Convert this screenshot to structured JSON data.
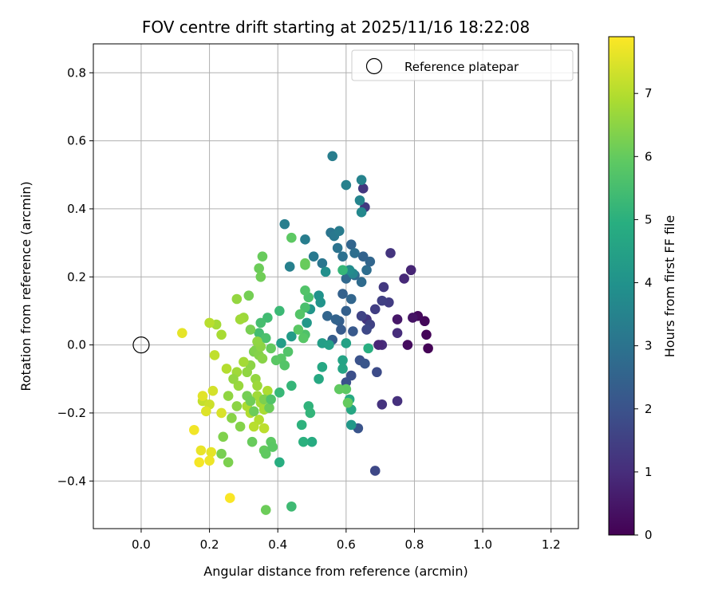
{
  "chart_data": {
    "type": "scatter",
    "title": "FOV centre drift starting at 2025/11/16 18:22:08",
    "xlabel": "Angular distance from reference (arcmin)",
    "ylabel": "Rotation from reference (arcmin)",
    "xlim": [
      -0.14,
      1.28
    ],
    "ylim": [
      -0.54,
      0.885
    ],
    "xticks": [
      0.0,
      0.2,
      0.4,
      0.6,
      0.8,
      1.0,
      1.2
    ],
    "xtick_labels": [
      "0.0",
      "0.2",
      "0.4",
      "0.6",
      "0.8",
      "1.0",
      "1.2"
    ],
    "yticks": [
      -0.4,
      -0.2,
      0.0,
      0.2,
      0.4,
      0.6,
      0.8
    ],
    "ytick_labels": [
      "−0.4",
      "−0.2",
      "0.0",
      "0.2",
      "0.4",
      "0.6",
      "0.8"
    ],
    "grid": true,
    "legend": {
      "placement": "top-right",
      "entries": [
        {
          "label": "Reference platepar",
          "marker": "open-circle"
        }
      ]
    },
    "reference_point": {
      "x": 0.0,
      "y": 0.0
    },
    "colorbar": {
      "label": "Hours from first FF file",
      "colormap": "viridis",
      "range": [
        0,
        7.9
      ],
      "ticks": [
        0,
        1,
        2,
        3,
        4,
        5,
        6,
        7
      ],
      "tick_labels": [
        "0",
        "1",
        "2",
        "3",
        "4",
        "5",
        "6",
        "7"
      ]
    },
    "points": [
      [
        0.84,
        -0.01,
        0.05
      ],
      [
        0.835,
        0.03,
        0.1
      ],
      [
        0.83,
        0.07,
        0.15
      ],
      [
        0.81,
        0.085,
        0.2
      ],
      [
        0.78,
        0.0,
        0.25
      ],
      [
        0.795,
        0.08,
        0.4
      ],
      [
        0.75,
        0.075,
        0.5
      ],
      [
        0.79,
        0.22,
        0.8
      ],
      [
        0.77,
        0.195,
        0.9
      ],
      [
        0.75,
        0.035,
        1.0
      ],
      [
        0.75,
        -0.165,
        1.1
      ],
      [
        0.73,
        0.27,
        1.2
      ],
      [
        0.705,
        0.0,
        1.0
      ],
      [
        0.705,
        -0.175,
        1.15
      ],
      [
        0.695,
        0.0,
        0.85
      ],
      [
        0.71,
        0.17,
        1.3
      ],
      [
        0.725,
        0.125,
        1.4
      ],
      [
        0.705,
        0.13,
        1.5
      ],
      [
        0.685,
        0.105,
        1.45
      ],
      [
        0.66,
        0.075,
        1.2
      ],
      [
        0.65,
        0.46,
        1.25
      ],
      [
        0.655,
        0.405,
        1.3
      ],
      [
        0.645,
        0.085,
        1.6
      ],
      [
        0.67,
        0.06,
        1.55
      ],
      [
        0.66,
        0.045,
        1.7
      ],
      [
        0.69,
        -0.08,
        1.8
      ],
      [
        0.685,
        -0.37,
        1.7
      ],
      [
        0.615,
        -0.09,
        1.9
      ],
      [
        0.6,
        -0.11,
        1.95
      ],
      [
        0.64,
        -0.045,
        2.0
      ],
      [
        0.655,
        -0.055,
        2.1
      ],
      [
        0.635,
        -0.245,
        2.05
      ],
      [
        0.62,
        0.04,
        2.2
      ],
      [
        0.585,
        0.045,
        2.25
      ],
      [
        0.56,
        0.015,
        2.3
      ],
      [
        0.58,
        0.07,
        2.35
      ],
      [
        0.6,
        0.1,
        2.4
      ],
      [
        0.57,
        0.075,
        2.5
      ],
      [
        0.545,
        0.085,
        2.55
      ],
      [
        0.59,
        0.15,
        2.45
      ],
      [
        0.615,
        0.135,
        2.6
      ],
      [
        0.6,
        0.195,
        2.65
      ],
      [
        0.625,
        0.205,
        2.7
      ],
      [
        0.645,
        0.185,
        2.75
      ],
      [
        0.66,
        0.22,
        2.8
      ],
      [
        0.67,
        0.245,
        2.6
      ],
      [
        0.65,
        0.26,
        2.5
      ],
      [
        0.615,
        0.295,
        2.55
      ],
      [
        0.625,
        0.27,
        2.85
      ],
      [
        0.59,
        0.26,
        2.9
      ],
      [
        0.575,
        0.285,
        3.0
      ],
      [
        0.555,
        0.33,
        3.05
      ],
      [
        0.565,
        0.32,
        3.15
      ],
      [
        0.58,
        0.335,
        3.25
      ],
      [
        0.53,
        0.24,
        3.1
      ],
      [
        0.505,
        0.26,
        3.2
      ],
      [
        0.48,
        0.31,
        3.3
      ],
      [
        0.42,
        0.355,
        3.35
      ],
      [
        0.435,
        0.23,
        3.4
      ],
      [
        0.56,
        0.555,
        3.3
      ],
      [
        0.6,
        0.47,
        3.45
      ],
      [
        0.645,
        0.485,
        3.5
      ],
      [
        0.64,
        0.425,
        3.55
      ],
      [
        0.645,
        0.39,
        3.65
      ],
      [
        0.62,
        0.21,
        3.6
      ],
      [
        0.61,
        0.22,
        3.8
      ],
      [
        0.54,
        0.215,
        3.9
      ],
      [
        0.52,
        0.145,
        4.0
      ],
      [
        0.525,
        0.125,
        4.05
      ],
      [
        0.495,
        0.105,
        4.1
      ],
      [
        0.485,
        0.065,
        4.2
      ],
      [
        0.44,
        0.025,
        4.3
      ],
      [
        0.41,
        0.005,
        4.35
      ],
      [
        0.53,
        0.005,
        4.4
      ],
      [
        0.55,
        0.0,
        4.45
      ],
      [
        0.6,
        0.005,
        4.5
      ],
      [
        0.59,
        -0.045,
        4.55
      ],
      [
        0.59,
        -0.07,
        4.6
      ],
      [
        0.53,
        -0.065,
        4.7
      ],
      [
        0.52,
        -0.1,
        4.75
      ],
      [
        0.615,
        -0.19,
        4.65
      ],
      [
        0.61,
        -0.16,
        4.8
      ],
      [
        0.615,
        -0.235,
        4.2
      ],
      [
        0.5,
        -0.285,
        4.85
      ],
      [
        0.475,
        -0.285,
        5.0
      ],
      [
        0.47,
        -0.235,
        5.05
      ],
      [
        0.49,
        -0.18,
        5.1
      ],
      [
        0.495,
        -0.2,
        5.15
      ],
      [
        0.44,
        -0.12,
        5.2
      ],
      [
        0.405,
        -0.14,
        5.25
      ],
      [
        0.405,
        -0.345,
        4.9
      ],
      [
        0.44,
        -0.475,
        5.35
      ],
      [
        0.405,
        0.1,
        5.3
      ],
      [
        0.37,
        0.08,
        5.4
      ],
      [
        0.345,
        0.035,
        5.45
      ],
      [
        0.35,
        0.065,
        5.5
      ],
      [
        0.48,
        0.11,
        5.55
      ],
      [
        0.49,
        0.14,
        5.6
      ],
      [
        0.48,
        0.16,
        5.7
      ],
      [
        0.465,
        0.09,
        5.75
      ],
      [
        0.48,
        0.03,
        5.65
      ],
      [
        0.475,
        0.02,
        5.8
      ],
      [
        0.46,
        0.045,
        5.85
      ],
      [
        0.59,
        0.22,
        5.2
      ],
      [
        0.6,
        -0.13,
        5.9
      ],
      [
        0.58,
        -0.13,
        5.95
      ],
      [
        0.605,
        -0.17,
        6.0
      ],
      [
        0.665,
        -0.01,
        4.95
      ],
      [
        0.44,
        0.315,
        5.9
      ],
      [
        0.48,
        0.235,
        6.0
      ],
      [
        0.48,
        0.24,
        6.05
      ],
      [
        0.355,
        0.26,
        6.05
      ],
      [
        0.345,
        0.225,
        6.1
      ],
      [
        0.35,
        0.2,
        6.15
      ],
      [
        0.315,
        0.145,
        6.2
      ],
      [
        0.32,
        0.045,
        6.25
      ],
      [
        0.33,
        -0.02,
        6.3
      ],
      [
        0.335,
        -0.015,
        6.35
      ],
      [
        0.345,
        -0.03,
        6.4
      ],
      [
        0.355,
        -0.04,
        6.45
      ],
      [
        0.32,
        -0.06,
        6.5
      ],
      [
        0.31,
        -0.08,
        6.55
      ],
      [
        0.335,
        -0.1,
        6.6
      ],
      [
        0.34,
        -0.12,
        6.7
      ],
      [
        0.34,
        -0.15,
        6.75
      ],
      [
        0.35,
        -0.17,
        6.8
      ],
      [
        0.36,
        -0.19,
        6.85
      ],
      [
        0.31,
        -0.18,
        6.9
      ],
      [
        0.32,
        -0.2,
        6.95
      ],
      [
        0.345,
        -0.22,
        7.0
      ],
      [
        0.33,
        -0.24,
        7.05
      ],
      [
        0.36,
        -0.245,
        7.1
      ],
      [
        0.37,
        -0.135,
        6.9
      ],
      [
        0.28,
        -0.08,
        6.75
      ],
      [
        0.3,
        -0.05,
        6.8
      ],
      [
        0.285,
        -0.12,
        6.65
      ],
      [
        0.27,
        -0.1,
        6.6
      ],
      [
        0.255,
        -0.15,
        6.55
      ],
      [
        0.28,
        -0.18,
        6.5
      ],
      [
        0.265,
        -0.215,
        6.45
      ],
      [
        0.29,
        -0.24,
        6.4
      ],
      [
        0.24,
        -0.27,
        6.35
      ],
      [
        0.255,
        -0.345,
        6.3
      ],
      [
        0.235,
        -0.32,
        6.25
      ],
      [
        0.31,
        -0.15,
        6.2
      ],
      [
        0.32,
        -0.165,
        6.15
      ],
      [
        0.33,
        -0.195,
        6.1
      ],
      [
        0.325,
        -0.285,
        6.05
      ],
      [
        0.36,
        -0.31,
        6.0
      ],
      [
        0.365,
        -0.32,
        5.95
      ],
      [
        0.38,
        -0.285,
        5.9
      ],
      [
        0.385,
        -0.3,
        5.85
      ],
      [
        0.375,
        -0.185,
        6.1
      ],
      [
        0.36,
        -0.16,
        6.3
      ],
      [
        0.38,
        -0.16,
        5.7
      ],
      [
        0.41,
        -0.04,
        5.8
      ],
      [
        0.395,
        -0.045,
        5.85
      ],
      [
        0.38,
        -0.01,
        6.0
      ],
      [
        0.42,
        -0.06,
        5.75
      ],
      [
        0.43,
        -0.02,
        5.7
      ],
      [
        0.365,
        0.02,
        5.6
      ],
      [
        0.35,
        -0.005,
        6.5
      ],
      [
        0.34,
        0.01,
        6.55
      ],
      [
        0.28,
        0.135,
        6.6
      ],
      [
        0.3,
        0.08,
        6.7
      ],
      [
        0.29,
        0.075,
        6.75
      ],
      [
        0.22,
        0.06,
        6.8
      ],
      [
        0.235,
        0.03,
        6.85
      ],
      [
        0.2,
        0.065,
        7.05
      ],
      [
        0.25,
        -0.07,
        7.0
      ],
      [
        0.215,
        -0.03,
        7.15
      ],
      [
        0.18,
        -0.165,
        7.2
      ],
      [
        0.2,
        -0.175,
        7.3
      ],
      [
        0.21,
        -0.135,
        7.4
      ],
      [
        0.235,
        -0.2,
        7.45
      ],
      [
        0.19,
        -0.195,
        7.5
      ],
      [
        0.18,
        -0.15,
        7.55
      ],
      [
        0.205,
        -0.315,
        7.6
      ],
      [
        0.175,
        -0.31,
        7.65
      ],
      [
        0.2,
        -0.34,
        7.7
      ],
      [
        0.155,
        -0.25,
        7.75
      ],
      [
        0.17,
        -0.345,
        7.8
      ],
      [
        0.26,
        -0.45,
        7.85
      ],
      [
        0.12,
        0.035,
        7.6
      ],
      [
        0.365,
        -0.485,
        6.1
      ]
    ]
  }
}
